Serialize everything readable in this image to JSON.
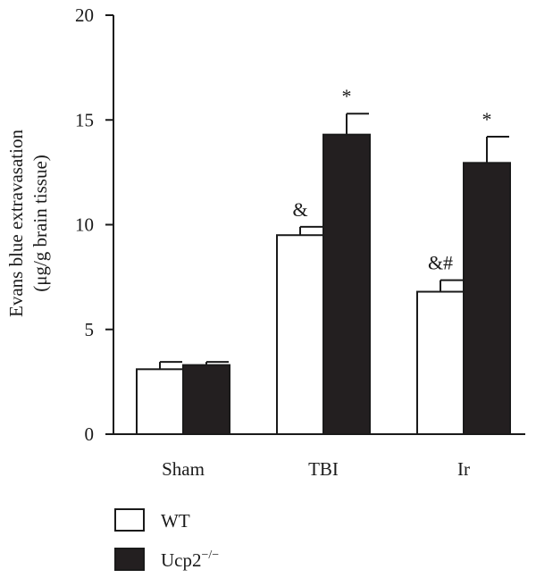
{
  "chart_data": {
    "type": "bar",
    "categories": [
      "Sham",
      "TBI",
      "Ir"
    ],
    "ylabel_line1": "Evans blue extravasation",
    "ylabel_line2": "(μg/g brain tissue)",
    "ylim": [
      0,
      20
    ],
    "yticks": [
      0,
      5,
      10,
      15,
      20
    ],
    "grid": false,
    "legend_position": "bottom-left",
    "series": [
      {
        "name": "WT",
        "fill": "#ffffff",
        "values": [
          3.1,
          9.5,
          6.8
        ],
        "errors": [
          0.35,
          0.4,
          0.55
        ],
        "annotations": [
          "",
          "&",
          "&#"
        ]
      },
      {
        "name": "Ucp2−/−",
        "name_base": "Ucp2",
        "name_sup": "−/−",
        "fill": "#231f20",
        "values": [
          3.3,
          14.3,
          12.95
        ],
        "errors": [
          0.15,
          1.0,
          1.25
        ],
        "annotations": [
          "",
          "*",
          "*"
        ]
      }
    ]
  }
}
